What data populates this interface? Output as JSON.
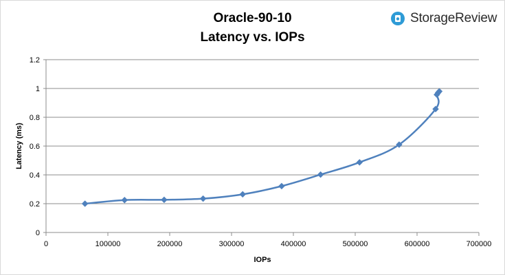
{
  "brand": {
    "name": "StorageReview",
    "logo_icon": "storagereview-logo-icon",
    "accent": "#2e9bd6"
  },
  "chart_data": {
    "type": "line",
    "title": "Oracle-90-10",
    "subtitle": "Latency vs. IOPs",
    "xlabel": "IOPs",
    "ylabel": "Latency (ms)",
    "xlim": [
      0,
      700000
    ],
    "ylim": [
      0,
      1.2
    ],
    "xticks": [
      0,
      100000,
      200000,
      300000,
      400000,
      500000,
      600000,
      700000
    ],
    "yticks": [
      0,
      0.2,
      0.4,
      0.6,
      0.8,
      1,
      1.2
    ],
    "grid": {
      "horizontal": true,
      "vertical": false
    },
    "legend": "none",
    "line_color": "#4f81bd",
    "marker": "diamond",
    "smooth": true,
    "series": [
      {
        "x": [
          63000,
          127000,
          191000,
          254000,
          318000,
          381000,
          444000,
          507000,
          571000,
          630000,
          632000,
          634000,
          636000
        ],
        "y": [
          0.2,
          0.225,
          0.227,
          0.235,
          0.265,
          0.322,
          0.402,
          0.487,
          0.61,
          0.857,
          0.957,
          0.97,
          0.98
        ]
      }
    ]
  }
}
